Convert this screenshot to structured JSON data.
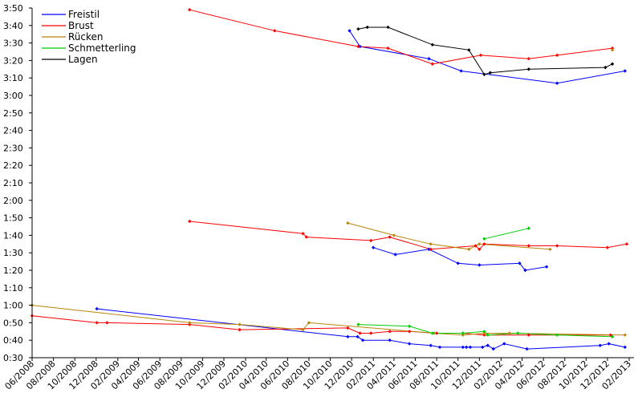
{
  "chart_data": {
    "type": "line",
    "title": "",
    "xlabel": "",
    "ylabel": "",
    "x_axis": {
      "min": "2008-06-01",
      "max": "2013-02-01",
      "ticks": [
        {
          "date": "2008-06-01",
          "label": "06/2008"
        },
        {
          "date": "2008-08-01",
          "label": "08/2008"
        },
        {
          "date": "2008-10-01",
          "label": "10/2008"
        },
        {
          "date": "2008-12-01",
          "label": "12/2008"
        },
        {
          "date": "2009-02-01",
          "label": "02/2009"
        },
        {
          "date": "2009-04-01",
          "label": "04/2009"
        },
        {
          "date": "2009-06-01",
          "label": "06/2009"
        },
        {
          "date": "2009-08-01",
          "label": "08/2009"
        },
        {
          "date": "2009-10-01",
          "label": "10/2009"
        },
        {
          "date": "2009-12-01",
          "label": "12/2009"
        },
        {
          "date": "2010-02-01",
          "label": "02/2010"
        },
        {
          "date": "2010-04-01",
          "label": "04/2010"
        },
        {
          "date": "2010-06-01",
          "label": "06/2010"
        },
        {
          "date": "2010-08-01",
          "label": "08/2010"
        },
        {
          "date": "2010-10-01",
          "label": "10/2010"
        },
        {
          "date": "2010-12-01",
          "label": "12/2010"
        },
        {
          "date": "2011-02-01",
          "label": "02/2011"
        },
        {
          "date": "2011-04-01",
          "label": "04/2011"
        },
        {
          "date": "2011-06-01",
          "label": "06/2011"
        },
        {
          "date": "2011-08-01",
          "label": "08/2011"
        },
        {
          "date": "2011-10-01",
          "label": "10/2011"
        },
        {
          "date": "2011-12-01",
          "label": "12/2011"
        },
        {
          "date": "2012-02-01",
          "label": "02/2012"
        },
        {
          "date": "2012-04-01",
          "label": "04/2012"
        },
        {
          "date": "2012-06-01",
          "label": "06/2012"
        },
        {
          "date": "2012-08-01",
          "label": "08/2012"
        },
        {
          "date": "2012-10-01",
          "label": "10/2012"
        },
        {
          "date": "2012-12-01",
          "label": "12/2012"
        },
        {
          "date": "2013-02-01",
          "label": "02/2013"
        }
      ]
    },
    "y_axis": {
      "min": "0:30",
      "max": "3:50",
      "ticks": [
        "0:30",
        "0:40",
        "0:50",
        "1:00",
        "1:10",
        "1:20",
        "1:30",
        "1:40",
        "1:50",
        "2:00",
        "2:10",
        "2:20",
        "2:30",
        "2:40",
        "2:50",
        "3:00",
        "3:10",
        "3:20",
        "3:30",
        "3:40",
        "3:50"
      ]
    },
    "grid": false,
    "legend": {
      "placement": "top-left"
    },
    "series": [
      {
        "name": "Freistil",
        "color": "#0000ff",
        "segments": [
          [
            [
              "2008-12-03",
              "0:58"
            ],
            [
              "2010-11-20",
              "0:42"
            ],
            [
              "2010-12-18",
              "0:42"
            ],
            [
              "2011-01-02",
              "0:40"
            ],
            [
              "2011-03-20",
              "0:40"
            ],
            [
              "2011-05-15",
              "0:38"
            ],
            [
              "2011-07-15",
              "0:37"
            ],
            [
              "2011-08-10",
              "0:36"
            ],
            [
              "2011-10-15",
              "0:36"
            ],
            [
              "2011-10-25",
              "0:36"
            ],
            [
              "2011-11-05",
              "0:36"
            ],
            [
              "2011-12-10",
              "0:36"
            ],
            [
              "2011-12-25",
              "0:37"
            ],
            [
              "2012-01-10",
              "0:35"
            ],
            [
              "2012-02-10",
              "0:38"
            ],
            [
              "2012-04-15",
              "0:35"
            ],
            [
              "2012-11-10",
              "0:37"
            ],
            [
              "2012-12-05",
              "0:38"
            ],
            [
              "2013-01-20",
              "0:36"
            ]
          ],
          [
            [
              "2011-02-01",
              "1:33"
            ],
            [
              "2011-04-05",
              "1:29"
            ],
            [
              "2011-07-10",
              "1:32"
            ],
            [
              "2011-10-01",
              "1:24"
            ],
            [
              "2011-12-01",
              "1:23"
            ],
            [
              "2012-03-25",
              "1:24"
            ],
            [
              "2012-04-10",
              "1:20"
            ],
            [
              "2012-06-10",
              "1:22"
            ]
          ],
          [
            [
              "2010-11-25",
              "3:37"
            ],
            [
              "2010-12-25",
              "3:28"
            ],
            [
              "2011-07-10",
              "3:21"
            ],
            [
              "2011-10-10",
              "3:14"
            ],
            [
              "2012-07-10",
              "3:07"
            ],
            [
              "2013-01-20",
              "3:14"
            ]
          ]
        ]
      },
      {
        "name": "Brust",
        "color": "#ff0000",
        "segments": [
          [
            [
              "2008-06-01",
              "0:54"
            ],
            [
              "2008-12-03",
              "0:50"
            ],
            [
              "2009-01-01",
              "0:50"
            ],
            [
              "2009-08-25",
              "0:49"
            ],
            [
              "2010-01-15",
              "0:46"
            ],
            [
              "2010-11-20",
              "0:47"
            ],
            [
              "2010-12-25",
              "0:44"
            ],
            [
              "2011-01-25",
              "0:44"
            ],
            [
              "2011-03-20",
              "0:45"
            ],
            [
              "2011-05-15",
              "0:45"
            ],
            [
              "2011-08-01",
              "0:44"
            ],
            [
              "2011-10-15",
              "0:44"
            ],
            [
              "2011-12-15",
              "0:43"
            ],
            [
              "2012-04-20",
              "0:43"
            ],
            [
              "2012-12-10",
              "0:43"
            ]
          ],
          [
            [
              "2009-08-25",
              "1:48"
            ],
            [
              "2010-07-15",
              "1:41"
            ],
            [
              "2010-07-25",
              "1:39"
            ],
            [
              "2011-01-25",
              "1:37"
            ],
            [
              "2011-03-20",
              "1:39"
            ],
            [
              "2011-07-15",
              "1:32"
            ],
            [
              "2011-11-20",
              "1:34"
            ],
            [
              "2011-12-01",
              "1:32"
            ],
            [
              "2011-12-15",
              "1:35"
            ],
            [
              "2012-04-20",
              "1:34"
            ],
            [
              "2012-07-10",
              "1:34"
            ],
            [
              "2012-12-01",
              "1:33"
            ],
            [
              "2013-01-25",
              "1:35"
            ]
          ],
          [
            [
              "2009-08-25",
              "3:49"
            ],
            [
              "2010-04-25",
              "3:37"
            ],
            [
              "2010-12-20",
              "3:28"
            ],
            [
              "2011-03-15",
              "3:27"
            ],
            [
              "2011-07-20",
              "3:18"
            ],
            [
              "2011-12-05",
              "3:23"
            ],
            [
              "2012-04-20",
              "3:21"
            ],
            [
              "2012-07-10",
              "3:23"
            ],
            [
              "2012-12-15",
              "3:27"
            ]
          ]
        ]
      },
      {
        "name": "Rücken",
        "color": "#b8860b",
        "segments": [
          [
            [
              "2008-06-01",
              "1:00"
            ],
            [
              "2009-08-25",
              "0:50"
            ],
            [
              "2010-01-15",
              "0:49"
            ],
            [
              "2010-07-15",
              "0:46"
            ],
            [
              "2010-08-01",
              "0:50"
            ],
            [
              "2011-07-25",
              "0:44"
            ],
            [
              "2011-10-15",
              "0:43"
            ],
            [
              "2011-12-15",
              "0:44"
            ],
            [
              "2012-02-25",
              "0:44"
            ],
            [
              "2013-01-20",
              "0:43"
            ]
          ],
          [
            [
              "2010-11-20",
              "1:47"
            ],
            [
              "2011-04-01",
              "1:40"
            ],
            [
              "2011-07-15",
              "1:35"
            ],
            [
              "2011-11-01",
              "1:32"
            ],
            [
              "2011-12-01",
              "1:35"
            ],
            [
              "2012-06-20",
              "1:32"
            ]
          ],
          [
            [
              "2012-12-15",
              "3:26"
            ]
          ]
        ]
      },
      {
        "name": "Schmetterling",
        "color": "#00cc00",
        "segments": [
          [
            [
              "2010-12-20",
              "0:49"
            ],
            [
              "2011-05-15",
              "0:48"
            ],
            [
              "2011-07-20",
              "0:44"
            ],
            [
              "2011-10-15",
              "0:44"
            ],
            [
              "2011-12-15",
              "0:45"
            ],
            [
              "2011-12-25",
              "0:43"
            ],
            [
              "2012-03-20",
              "0:44"
            ],
            [
              "2012-07-10",
              "0:43"
            ],
            [
              "2012-12-15",
              "0:42"
            ]
          ],
          [
            [
              "2011-12-15",
              "1:38"
            ],
            [
              "2012-04-20",
              "1:44"
            ]
          ]
        ]
      },
      {
        "name": "Lagen",
        "color": "#000000",
        "segments": [
          [
            [
              "2010-12-20",
              "3:38"
            ],
            [
              "2011-01-15",
              "3:39"
            ],
            [
              "2011-03-15",
              "3:39"
            ],
            [
              "2011-07-20",
              "3:29"
            ],
            [
              "2011-11-01",
              "3:26"
            ],
            [
              "2011-12-15",
              "3:12"
            ],
            [
              "2012-01-01",
              "3:13"
            ],
            [
              "2012-04-20",
              "3:15"
            ],
            [
              "2012-11-25",
              "3:16"
            ],
            [
              "2012-12-15",
              "3:18"
            ]
          ]
        ]
      }
    ]
  }
}
